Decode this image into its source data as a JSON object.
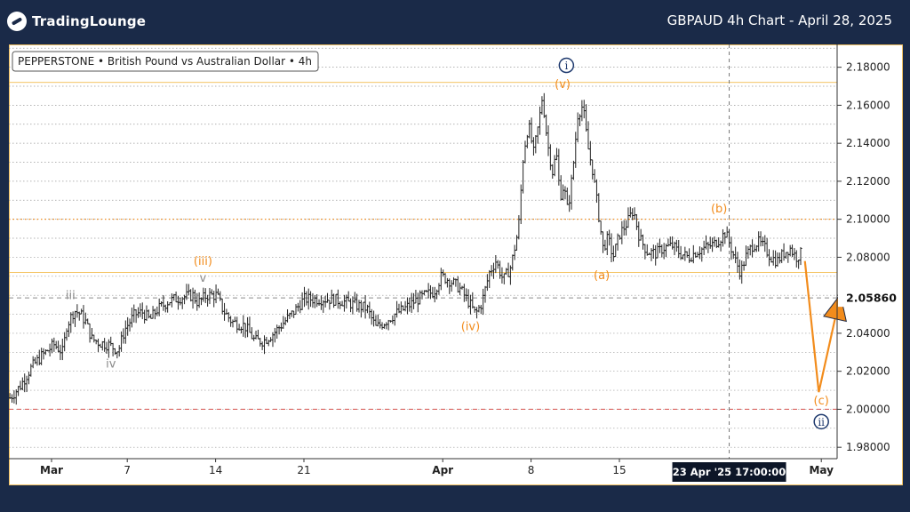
{
  "header": {
    "logo_text_main": "TradingLounge",
    "title": "GBPAUD 4h Chart - April 28, 2025"
  },
  "legend": {
    "label": "PEPPERSTONE • British Pound vs Australian Dollar • 4h"
  },
  "colors": {
    "background": "#1a2a48",
    "plot_bg": "#ffffff",
    "orange": "#f28c1c",
    "navy": "#1f3a6e",
    "grey_label": "#8a8a8a",
    "red_line": "#d9534f",
    "gold_line": "#f0b030"
  },
  "chart_data": {
    "type": "candlestick",
    "symbol": "GBPAUD",
    "timeframe": "4h",
    "ylim": [
      1.974,
      2.192
    ],
    "y_ticks": [
      "2.18000",
      "2.16000",
      "2.14000",
      "2.12000",
      "2.10000",
      "2.08000",
      "2.06000",
      "2.04000",
      "2.02000",
      "2.00000",
      "1.98000"
    ],
    "current_price": "2.05860",
    "x_ticks": [
      {
        "label": "Mar",
        "day": 0
      },
      {
        "label": "7",
        "day": 6
      },
      {
        "label": "14",
        "day": 13
      },
      {
        "label": "21",
        "day": 20
      },
      {
        "label": "Apr",
        "day": 31
      },
      {
        "label": "8",
        "day": 38
      },
      {
        "label": "15",
        "day": 45
      },
      {
        "label": "May",
        "day": 61
      }
    ],
    "crosshair": {
      "label": "23 Apr '25    17:00:00",
      "day": 53.7
    },
    "horizontal_levels": [
      {
        "price": 2.172,
        "style": "gold-solid"
      },
      {
        "price": 2.1,
        "style": "orange-dotted"
      },
      {
        "price": 2.072,
        "style": "gold-solid"
      },
      {
        "price": 2.0586,
        "style": "grey-dashed"
      },
      {
        "price": 2.0,
        "style": "red-dashed"
      }
    ],
    "price_path": [
      [
        -3.3,
        2.006
      ],
      [
        -2.5,
        2.012
      ],
      [
        -1.6,
        2.022
      ],
      [
        -0.8,
        2.028
      ],
      [
        0.2,
        2.034
      ],
      [
        0.9,
        2.03
      ],
      [
        1.2,
        2.044
      ],
      [
        1.8,
        2.052
      ],
      [
        2.3,
        2.05
      ],
      [
        2.7,
        2.046
      ],
      [
        3.2,
        2.037
      ],
      [
        3.8,
        2.035
      ],
      [
        4.5,
        2.034
      ],
      [
        5.3,
        2.031
      ],
      [
        5.8,
        2.042
      ],
      [
        6.6,
        2.05
      ],
      [
        7.2,
        2.051
      ],
      [
        7.8,
        2.047
      ],
      [
        8.3,
        2.052
      ],
      [
        9.3,
        2.057
      ],
      [
        10.3,
        2.059
      ],
      [
        11.2,
        2.06
      ],
      [
        11.6,
        2.056
      ],
      [
        12.3,
        2.06
      ],
      [
        13.1,
        2.06
      ],
      [
        13.6,
        2.052
      ],
      [
        14.3,
        2.046
      ],
      [
        15.3,
        2.044
      ],
      [
        16.1,
        2.036
      ],
      [
        16.8,
        2.036
      ],
      [
        17.6,
        2.04
      ],
      [
        18.3,
        2.045
      ],
      [
        19.3,
        2.052
      ],
      [
        20.0,
        2.058
      ],
      [
        21.0,
        2.058
      ],
      [
        22.0,
        2.058
      ],
      [
        23.0,
        2.057
      ],
      [
        24.0,
        2.055
      ],
      [
        25.0,
        2.053
      ],
      [
        25.7,
        2.043
      ],
      [
        26.4,
        2.046
      ],
      [
        27.2,
        2.05
      ],
      [
        28.0,
        2.053
      ],
      [
        28.8,
        2.057
      ],
      [
        29.6,
        2.06
      ],
      [
        30.3,
        2.062
      ],
      [
        30.9,
        2.07
      ],
      [
        31.5,
        2.068
      ],
      [
        32.3,
        2.064
      ],
      [
        33.1,
        2.056
      ],
      [
        33.6,
        2.05
      ],
      [
        34.1,
        2.056
      ],
      [
        34.7,
        2.072
      ],
      [
        35.2,
        2.078
      ],
      [
        35.8,
        2.068
      ],
      [
        36.4,
        2.075
      ],
      [
        37.0,
        2.095
      ],
      [
        37.4,
        2.135
      ],
      [
        37.8,
        2.15
      ],
      [
        38.2,
        2.135
      ],
      [
        38.6,
        2.15
      ],
      [
        38.9,
        2.165
      ],
      [
        39.3,
        2.14
      ],
      [
        39.7,
        2.125
      ],
      [
        40.0,
        2.135
      ],
      [
        40.3,
        2.112
      ],
      [
        40.6,
        2.118
      ],
      [
        40.9,
        2.104
      ],
      [
        41.3,
        2.125
      ],
      [
        41.7,
        2.155
      ],
      [
        42.1,
        2.16
      ],
      [
        42.5,
        2.138
      ],
      [
        42.9,
        2.125
      ],
      [
        43.3,
        2.105
      ],
      [
        43.7,
        2.085
      ],
      [
        44.1,
        2.09
      ],
      [
        44.5,
        2.08
      ],
      [
        45.0,
        2.092
      ],
      [
        45.6,
        2.098
      ],
      [
        46.1,
        2.105
      ],
      [
        46.6,
        2.09
      ],
      [
        47.2,
        2.083
      ],
      [
        47.9,
        2.082
      ],
      [
        48.5,
        2.085
      ],
      [
        49.2,
        2.086
      ],
      [
        49.8,
        2.082
      ],
      [
        50.5,
        2.08
      ],
      [
        51.1,
        2.083
      ],
      [
        51.8,
        2.085
      ],
      [
        52.5,
        2.087
      ],
      [
        53.0,
        2.09
      ],
      [
        53.4,
        2.093
      ],
      [
        53.8,
        2.086
      ],
      [
        54.2,
        2.078
      ],
      [
        54.6,
        2.072
      ],
      [
        55.0,
        2.08
      ],
      [
        55.5,
        2.086
      ],
      [
        56.0,
        2.088
      ],
      [
        56.5,
        2.085
      ],
      [
        57.0,
        2.08
      ],
      [
        57.5,
        2.078
      ],
      [
        58.0,
        2.082
      ],
      [
        58.5,
        2.085
      ],
      [
        59.0,
        2.08
      ],
      [
        59.4,
        2.082
      ]
    ],
    "projection": [
      [
        59.7,
        2.078
      ],
      [
        60.8,
        2.009
      ],
      [
        62.3,
        2.054
      ]
    ],
    "wave_labels": [
      {
        "text": "iii",
        "day": 1.5,
        "price": 2.058,
        "color": "grey"
      },
      {
        "text": "iv",
        "day": 4.7,
        "price": 2.022,
        "color": "grey"
      },
      {
        "text": "v",
        "day": 12.0,
        "price": 2.067,
        "color": "grey"
      },
      {
        "text": "(iii)",
        "day": 12.0,
        "price": 2.076,
        "color": "orange"
      },
      {
        "text": "(iv)",
        "day": 33.2,
        "price": 2.0415,
        "color": "orange"
      },
      {
        "text": "(v)",
        "day": 40.5,
        "price": 2.169,
        "color": "orange"
      },
      {
        "text": "(a)",
        "day": 43.6,
        "price": 2.0685,
        "color": "orange"
      },
      {
        "text": "(b)",
        "day": 52.9,
        "price": 2.1035,
        "color": "orange"
      },
      {
        "text": "(c)",
        "day": 61.0,
        "price": 2.0025,
        "color": "orange"
      }
    ],
    "circle_labels": [
      {
        "text": "i",
        "day": 40.8,
        "price": 2.181
      },
      {
        "text": "ii",
        "day": 61.0,
        "price": 1.9935
      }
    ]
  }
}
